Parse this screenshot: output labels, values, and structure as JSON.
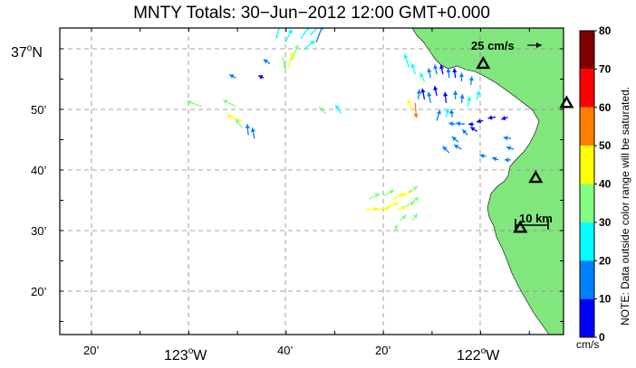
{
  "title": "MNTY Totals: 30−Jun−2012 12:00 GMT+0.000",
  "scale_label": "25 cm/s",
  "distance_label": "10 km",
  "note": "NOTE: Data outside color range will be saturated.",
  "colorbar": {
    "unit": "cm/s",
    "ticks": [
      "80",
      "70",
      "60",
      "50",
      "40",
      "30",
      "20",
      "10",
      "0"
    ],
    "colors": [
      "#0000ff",
      "#0080ff",
      "#00ffff",
      "#80ff80",
      "#ffff00",
      "#ff8000",
      "#ff0000",
      "#800000"
    ]
  },
  "lat_labels": [
    {
      "main": "37",
      "sup": "o",
      "suffix": "N"
    },
    {
      "main": "50’"
    },
    {
      "main": "40’"
    },
    {
      "main": "30’"
    },
    {
      "main": "20’"
    }
  ],
  "lon_labels": [
    {
      "main": "20’"
    },
    {
      "main": "123",
      "sup": "o",
      "suffix": "W"
    },
    {
      "main": "40’"
    },
    {
      "main": "20’"
    },
    {
      "main": "122",
      "sup": "o",
      "suffix": "W"
    }
  ],
  "colors": {
    "land": "#82e67e",
    "ocean": "#ffffff",
    "grid": "#888888",
    "site_marker": "#000000"
  },
  "map_data": {
    "projection": "lon_lat",
    "extent": {
      "lon": [
        -123.45,
        -121.82
      ],
      "lat": [
        36.2,
        37.06
      ]
    },
    "sites": [
      {
        "lon": -122.08,
        "lat": 36.96
      },
      {
        "lon": -121.81,
        "lat": 36.85
      },
      {
        "lon": -121.91,
        "lat": 36.64
      },
      {
        "lon": -121.96,
        "lat": 36.5
      }
    ],
    "vectors": [
      {
        "lon": -122.75,
        "lat": 37.03,
        "u": 4,
        "v": 14,
        "s": 22
      },
      {
        "lon": -122.72,
        "lat": 37.02,
        "u": 6,
        "v": 12,
        "s": 20
      },
      {
        "lon": -122.67,
        "lat": 37.03,
        "u": 8,
        "v": 12,
        "s": 24
      },
      {
        "lon": -122.64,
        "lat": 37.04,
        "u": 10,
        "v": 10,
        "s": 22
      },
      {
        "lon": -122.62,
        "lat": 37.02,
        "u": 6,
        "v": 16,
        "s": 18
      },
      {
        "lon": -122.66,
        "lat": 37.0,
        "u": 10,
        "v": 8,
        "s": 20
      },
      {
        "lon": -122.7,
        "lat": 36.97,
        "u": 6,
        "v": 14,
        "s": 38
      },
      {
        "lon": -122.73,
        "lat": 36.98,
        "u": 3,
        "v": -12,
        "s": 36
      },
      {
        "lon": -122.71,
        "lat": 36.95,
        "u": 4,
        "v": 14,
        "s": 40
      },
      {
        "lon": -122.77,
        "lat": 36.96,
        "u": -6,
        "v": 4,
        "s": 12
      },
      {
        "lon": -122.79,
        "lat": 36.92,
        "u": -5,
        "v": 2,
        "s": 8
      },
      {
        "lon": -122.88,
        "lat": 36.92,
        "u": -6,
        "v": 3,
        "s": 10
      },
      {
        "lon": -122.99,
        "lat": 36.84,
        "u": -14,
        "v": 5,
        "s": 34
      },
      {
        "lon": -122.88,
        "lat": 36.84,
        "u": -12,
        "v": 6,
        "s": 38
      },
      {
        "lon": -122.86,
        "lat": 36.8,
        "u": -14,
        "v": 5,
        "s": 40
      },
      {
        "lon": -122.86,
        "lat": 36.78,
        "u": -6,
        "v": 8,
        "s": 36
      },
      {
        "lon": -122.84,
        "lat": 36.76,
        "u": -1,
        "v": 10,
        "s": 14
      },
      {
        "lon": -122.82,
        "lat": 36.75,
        "u": -2,
        "v": 10,
        "s": 10
      },
      {
        "lon": -122.59,
        "lat": 36.82,
        "u": -6,
        "v": 6,
        "s": 32
      },
      {
        "lon": -122.54,
        "lat": 36.82,
        "u": -5,
        "v": 8,
        "s": 28
      },
      {
        "lon": -122.32,
        "lat": 36.95,
        "u": -4,
        "v": 12,
        "s": 24
      },
      {
        "lon": -122.3,
        "lat": 36.93,
        "u": -3,
        "v": 10,
        "s": 22
      },
      {
        "lon": -122.27,
        "lat": 36.91,
        "u": -4,
        "v": 8,
        "s": 20
      },
      {
        "lon": -122.25,
        "lat": 36.92,
        "u": -2,
        "v": 9,
        "s": 10
      },
      {
        "lon": -122.23,
        "lat": 36.93,
        "u": -2,
        "v": 9,
        "s": 12
      },
      {
        "lon": -122.21,
        "lat": 36.93,
        "u": -2,
        "v": 9,
        "s": 6
      },
      {
        "lon": -122.19,
        "lat": 36.92,
        "u": -1,
        "v": 9,
        "s": 14
      },
      {
        "lon": -122.17,
        "lat": 36.92,
        "u": -1,
        "v": 9,
        "s": 8
      },
      {
        "lon": -122.15,
        "lat": 36.91,
        "u": 0,
        "v": 8,
        "s": 12
      },
      {
        "lon": -122.12,
        "lat": 36.9,
        "u": 1,
        "v": 8,
        "s": 10
      },
      {
        "lon": -122.29,
        "lat": 36.86,
        "u": 1,
        "v": 9,
        "s": 12
      },
      {
        "lon": -122.27,
        "lat": 36.86,
        "u": -2,
        "v": 10,
        "s": 8
      },
      {
        "lon": -122.25,
        "lat": 36.85,
        "u": -2,
        "v": 10,
        "s": 10
      },
      {
        "lon": -122.23,
        "lat": 36.87,
        "u": -2,
        "v": 9,
        "s": 6
      },
      {
        "lon": -122.2,
        "lat": 36.85,
        "u": -1,
        "v": 10,
        "s": 8
      },
      {
        "lon": -122.17,
        "lat": 36.86,
        "u": 0,
        "v": 8,
        "s": 12
      },
      {
        "lon": -122.15,
        "lat": 36.85,
        "u": 1,
        "v": 8,
        "s": 16
      },
      {
        "lon": -122.13,
        "lat": 36.84,
        "u": 2,
        "v": 9,
        "s": 20
      },
      {
        "lon": -122.1,
        "lat": 36.86,
        "u": 2,
        "v": 8,
        "s": 22
      },
      {
        "lon": -122.31,
        "lat": 36.83,
        "u": -4,
        "v": 10,
        "s": 40
      },
      {
        "lon": -122.3,
        "lat": 36.85,
        "u": 1,
        "v": -14,
        "s": 55
      },
      {
        "lon": -122.23,
        "lat": 36.8,
        "u": 3,
        "v": 10,
        "s": 18
      },
      {
        "lon": -122.2,
        "lat": 36.81,
        "u": 2,
        "v": 8,
        "s": 22
      },
      {
        "lon": -122.18,
        "lat": 36.81,
        "u": -1,
        "v": 7,
        "s": 16
      },
      {
        "lon": -122.08,
        "lat": 36.8,
        "u": -6,
        "v": -1,
        "s": 5
      },
      {
        "lon": -122.04,
        "lat": 36.81,
        "u": -7,
        "v": -1,
        "s": 3
      },
      {
        "lon": -122.0,
        "lat": 36.81,
        "u": -6,
        "v": -2,
        "s": 6
      },
      {
        "lon": -122.14,
        "lat": 36.79,
        "u": -8,
        "v": 1,
        "s": 14
      },
      {
        "lon": -122.17,
        "lat": 36.79,
        "u": -6,
        "v": 1,
        "s": 10
      },
      {
        "lon": -122.11,
        "lat": 36.79,
        "u": -5,
        "v": 0,
        "s": 8
      },
      {
        "lon": -122.13,
        "lat": 36.76,
        "u": -5,
        "v": 5,
        "s": 12
      },
      {
        "lon": -122.16,
        "lat": 36.74,
        "u": -6,
        "v": 5,
        "s": 14
      },
      {
        "lon": -122.15,
        "lat": 36.72,
        "u": -7,
        "v": 4,
        "s": 16
      },
      {
        "lon": -122.19,
        "lat": 36.71,
        "u": -6,
        "v": 6,
        "s": 18
      },
      {
        "lon": -122.1,
        "lat": 36.77,
        "u": -6,
        "v": 4,
        "s": 8
      },
      {
        "lon": -121.99,
        "lat": 36.75,
        "u": -7,
        "v": 1,
        "s": 14
      },
      {
        "lon": -121.98,
        "lat": 36.72,
        "u": -7,
        "v": 2,
        "s": 16
      },
      {
        "lon": -122.07,
        "lat": 36.7,
        "u": -6,
        "v": 1,
        "s": 12
      },
      {
        "lon": -122.03,
        "lat": 36.69,
        "u": -6,
        "v": 2,
        "s": 14
      },
      {
        "lon": -121.99,
        "lat": 36.69,
        "u": -6,
        "v": 0,
        "s": 12
      },
      {
        "lon": -122.45,
        "lat": 36.58,
        "u": 10,
        "v": 5,
        "s": 34
      },
      {
        "lon": -122.4,
        "lat": 36.59,
        "u": 9,
        "v": 5,
        "s": 38
      },
      {
        "lon": -122.37,
        "lat": 36.58,
        "u": 10,
        "v": 5,
        "s": 44
      },
      {
        "lon": -122.34,
        "lat": 36.59,
        "u": 9,
        "v": 5,
        "s": 40
      },
      {
        "lon": -122.32,
        "lat": 36.6,
        "u": 8,
        "v": 5,
        "s": 38
      },
      {
        "lon": -122.46,
        "lat": 36.55,
        "u": 12,
        "v": 1,
        "s": 42
      },
      {
        "lon": -122.42,
        "lat": 36.55,
        "u": 11,
        "v": 2,
        "s": 46
      },
      {
        "lon": -122.39,
        "lat": 36.56,
        "u": 10,
        "v": 3,
        "s": 42
      },
      {
        "lon": -122.36,
        "lat": 36.55,
        "u": 9,
        "v": 3,
        "s": 40
      },
      {
        "lon": -122.33,
        "lat": 36.56,
        "u": 8,
        "v": 4,
        "s": 36
      },
      {
        "lon": -122.31,
        "lat": 36.57,
        "u": 6,
        "v": 5,
        "s": 32
      },
      {
        "lon": -122.35,
        "lat": 36.52,
        "u": 6,
        "v": 5,
        "s": 30
      },
      {
        "lon": -122.31,
        "lat": 36.52,
        "u": 5,
        "v": 6,
        "s": 32
      },
      {
        "lon": -122.37,
        "lat": 36.49,
        "u": 4,
        "v": 6,
        "s": 30
      }
    ]
  }
}
